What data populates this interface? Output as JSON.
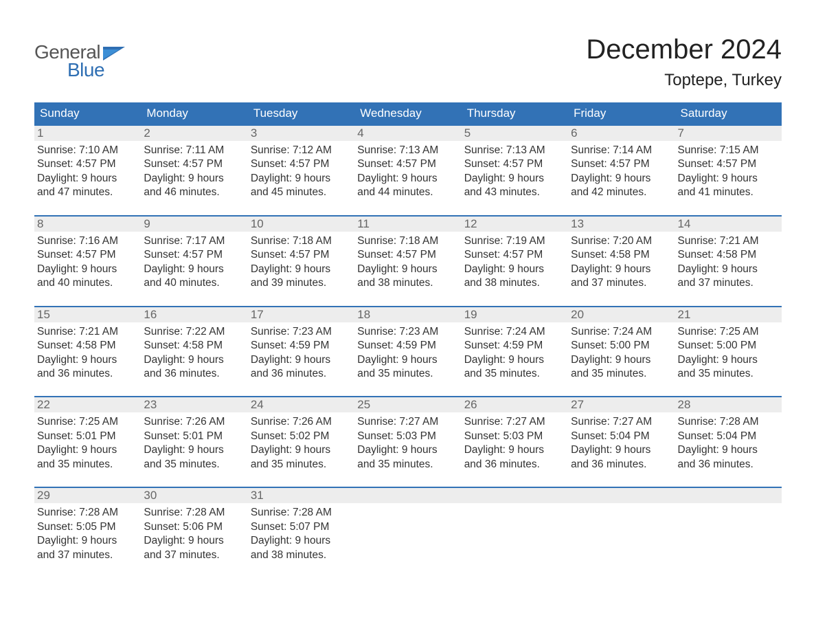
{
  "logo": {
    "word1": "General",
    "word2": "Blue"
  },
  "title": "December 2024",
  "location": "Toptepe, Turkey",
  "colors": {
    "header_bg": "#3272b6",
    "header_text": "#ffffff",
    "row_border": "#3272b6",
    "daynum_bg": "#ededed",
    "daynum_text": "#666666",
    "body_text": "#333333",
    "logo_gray": "#555555",
    "logo_blue": "#2f6fb3",
    "page_bg": "#ffffff"
  },
  "typography": {
    "title_fontsize": 40,
    "location_fontsize": 24,
    "dow_fontsize": 17,
    "daynum_fontsize": 17,
    "body_fontsize": 15.5,
    "logo_fontsize": 28
  },
  "days_of_week": [
    "Sunday",
    "Monday",
    "Tuesday",
    "Wednesday",
    "Thursday",
    "Friday",
    "Saturday"
  ],
  "weeks": [
    [
      {
        "n": "1",
        "sunrise": "Sunrise: 7:10 AM",
        "sunset": "Sunset: 4:57 PM",
        "d1": "Daylight: 9 hours",
        "d2": "and 47 minutes."
      },
      {
        "n": "2",
        "sunrise": "Sunrise: 7:11 AM",
        "sunset": "Sunset: 4:57 PM",
        "d1": "Daylight: 9 hours",
        "d2": "and 46 minutes."
      },
      {
        "n": "3",
        "sunrise": "Sunrise: 7:12 AM",
        "sunset": "Sunset: 4:57 PM",
        "d1": "Daylight: 9 hours",
        "d2": "and 45 minutes."
      },
      {
        "n": "4",
        "sunrise": "Sunrise: 7:13 AM",
        "sunset": "Sunset: 4:57 PM",
        "d1": "Daylight: 9 hours",
        "d2": "and 44 minutes."
      },
      {
        "n": "5",
        "sunrise": "Sunrise: 7:13 AM",
        "sunset": "Sunset: 4:57 PM",
        "d1": "Daylight: 9 hours",
        "d2": "and 43 minutes."
      },
      {
        "n": "6",
        "sunrise": "Sunrise: 7:14 AM",
        "sunset": "Sunset: 4:57 PM",
        "d1": "Daylight: 9 hours",
        "d2": "and 42 minutes."
      },
      {
        "n": "7",
        "sunrise": "Sunrise: 7:15 AM",
        "sunset": "Sunset: 4:57 PM",
        "d1": "Daylight: 9 hours",
        "d2": "and 41 minutes."
      }
    ],
    [
      {
        "n": "8",
        "sunrise": "Sunrise: 7:16 AM",
        "sunset": "Sunset: 4:57 PM",
        "d1": "Daylight: 9 hours",
        "d2": "and 40 minutes."
      },
      {
        "n": "9",
        "sunrise": "Sunrise: 7:17 AM",
        "sunset": "Sunset: 4:57 PM",
        "d1": "Daylight: 9 hours",
        "d2": "and 40 minutes."
      },
      {
        "n": "10",
        "sunrise": "Sunrise: 7:18 AM",
        "sunset": "Sunset: 4:57 PM",
        "d1": "Daylight: 9 hours",
        "d2": "and 39 minutes."
      },
      {
        "n": "11",
        "sunrise": "Sunrise: 7:18 AM",
        "sunset": "Sunset: 4:57 PM",
        "d1": "Daylight: 9 hours",
        "d2": "and 38 minutes."
      },
      {
        "n": "12",
        "sunrise": "Sunrise: 7:19 AM",
        "sunset": "Sunset: 4:57 PM",
        "d1": "Daylight: 9 hours",
        "d2": "and 38 minutes."
      },
      {
        "n": "13",
        "sunrise": "Sunrise: 7:20 AM",
        "sunset": "Sunset: 4:58 PM",
        "d1": "Daylight: 9 hours",
        "d2": "and 37 minutes."
      },
      {
        "n": "14",
        "sunrise": "Sunrise: 7:21 AM",
        "sunset": "Sunset: 4:58 PM",
        "d1": "Daylight: 9 hours",
        "d2": "and 37 minutes."
      }
    ],
    [
      {
        "n": "15",
        "sunrise": "Sunrise: 7:21 AM",
        "sunset": "Sunset: 4:58 PM",
        "d1": "Daylight: 9 hours",
        "d2": "and 36 minutes."
      },
      {
        "n": "16",
        "sunrise": "Sunrise: 7:22 AM",
        "sunset": "Sunset: 4:58 PM",
        "d1": "Daylight: 9 hours",
        "d2": "and 36 minutes."
      },
      {
        "n": "17",
        "sunrise": "Sunrise: 7:23 AM",
        "sunset": "Sunset: 4:59 PM",
        "d1": "Daylight: 9 hours",
        "d2": "and 36 minutes."
      },
      {
        "n": "18",
        "sunrise": "Sunrise: 7:23 AM",
        "sunset": "Sunset: 4:59 PM",
        "d1": "Daylight: 9 hours",
        "d2": "and 35 minutes."
      },
      {
        "n": "19",
        "sunrise": "Sunrise: 7:24 AM",
        "sunset": "Sunset: 4:59 PM",
        "d1": "Daylight: 9 hours",
        "d2": "and 35 minutes."
      },
      {
        "n": "20",
        "sunrise": "Sunrise: 7:24 AM",
        "sunset": "Sunset: 5:00 PM",
        "d1": "Daylight: 9 hours",
        "d2": "and 35 minutes."
      },
      {
        "n": "21",
        "sunrise": "Sunrise: 7:25 AM",
        "sunset": "Sunset: 5:00 PM",
        "d1": "Daylight: 9 hours",
        "d2": "and 35 minutes."
      }
    ],
    [
      {
        "n": "22",
        "sunrise": "Sunrise: 7:25 AM",
        "sunset": "Sunset: 5:01 PM",
        "d1": "Daylight: 9 hours",
        "d2": "and 35 minutes."
      },
      {
        "n": "23",
        "sunrise": "Sunrise: 7:26 AM",
        "sunset": "Sunset: 5:01 PM",
        "d1": "Daylight: 9 hours",
        "d2": "and 35 minutes."
      },
      {
        "n": "24",
        "sunrise": "Sunrise: 7:26 AM",
        "sunset": "Sunset: 5:02 PM",
        "d1": "Daylight: 9 hours",
        "d2": "and 35 minutes."
      },
      {
        "n": "25",
        "sunrise": "Sunrise: 7:27 AM",
        "sunset": "Sunset: 5:03 PM",
        "d1": "Daylight: 9 hours",
        "d2": "and 35 minutes."
      },
      {
        "n": "26",
        "sunrise": "Sunrise: 7:27 AM",
        "sunset": "Sunset: 5:03 PM",
        "d1": "Daylight: 9 hours",
        "d2": "and 36 minutes."
      },
      {
        "n": "27",
        "sunrise": "Sunrise: 7:27 AM",
        "sunset": "Sunset: 5:04 PM",
        "d1": "Daylight: 9 hours",
        "d2": "and 36 minutes."
      },
      {
        "n": "28",
        "sunrise": "Sunrise: 7:28 AM",
        "sunset": "Sunset: 5:04 PM",
        "d1": "Daylight: 9 hours",
        "d2": "and 36 minutes."
      }
    ],
    [
      {
        "n": "29",
        "sunrise": "Sunrise: 7:28 AM",
        "sunset": "Sunset: 5:05 PM",
        "d1": "Daylight: 9 hours",
        "d2": "and 37 minutes."
      },
      {
        "n": "30",
        "sunrise": "Sunrise: 7:28 AM",
        "sunset": "Sunset: 5:06 PM",
        "d1": "Daylight: 9 hours",
        "d2": "and 37 minutes."
      },
      {
        "n": "31",
        "sunrise": "Sunrise: 7:28 AM",
        "sunset": "Sunset: 5:07 PM",
        "d1": "Daylight: 9 hours",
        "d2": "and 38 minutes."
      },
      {
        "empty": true
      },
      {
        "empty": true
      },
      {
        "empty": true
      },
      {
        "empty": true
      }
    ]
  ]
}
